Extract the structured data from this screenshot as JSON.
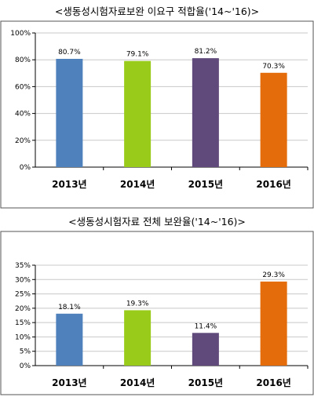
{
  "chart_data": [
    {
      "type": "bar",
      "title": "<생동성시험자료보완 이요구 적합율('14~'16)>",
      "categories": [
        "2013년",
        "2014년",
        "2015년",
        "2016년"
      ],
      "values": [
        80.7,
        79.1,
        81.2,
        70.3
      ],
      "value_labels": [
        "80.7%",
        "79.1%",
        "81.2%",
        "70.3%"
      ],
      "y_ticks": [
        "0%",
        "20%",
        "40%",
        "60%",
        "80%",
        "100%"
      ],
      "ylim": [
        0,
        100
      ],
      "grid": true,
      "colors": [
        "#4f81bd",
        "#99cc1a",
        "#604a7b",
        "#e46c0a"
      ]
    },
    {
      "type": "bar",
      "title": "<생동성시험자료 전체 보완율('14~'16)>",
      "categories": [
        "2013년",
        "2014년",
        "2015년",
        "2016년"
      ],
      "values": [
        18.1,
        19.3,
        11.4,
        29.3
      ],
      "value_labels": [
        "18.1%",
        "19.3%",
        "11.4%",
        "29.3%"
      ],
      "y_ticks": [
        "0%",
        "5%",
        "10%",
        "15%",
        "20%",
        "25%",
        "30%",
        "35%"
      ],
      "ylim": [
        0,
        35
      ],
      "grid": true,
      "colors": [
        "#4f81bd",
        "#99cc1a",
        "#604a7b",
        "#e46c0a"
      ]
    }
  ]
}
